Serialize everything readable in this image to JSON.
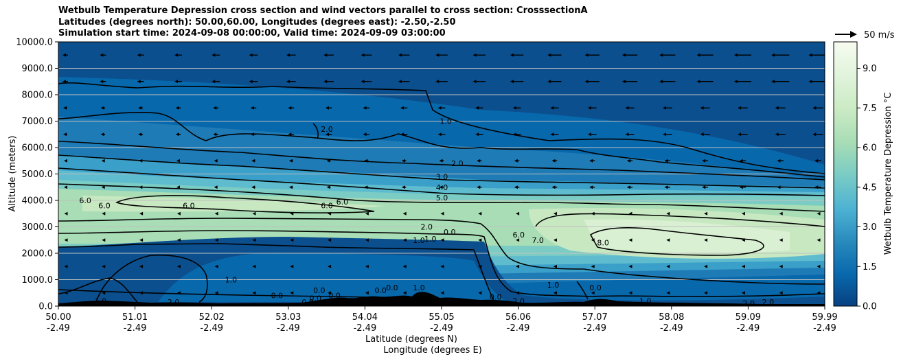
{
  "chart_data": {
    "type": "heatmap",
    "title_lines": [
      "Wetbulb Temperature Depression cross section and wind vectors parallel to cross section: CrosssectionA",
      "Latitudes (degrees north): 50.00,60.00, Longitudes (degrees east): -2.50,-2.50",
      "Simulation start time: 2024-09-08 00:00:00, Valid time: 2024-09-09 03:00:00"
    ],
    "ylabel": "Altitude (meters)",
    "xlabel_lat": "Latitude (degrees N)",
    "xlabel_lon": "Longitude (degrees E)",
    "ylim": [
      0,
      10000
    ],
    "yticks": [
      "0.0",
      "1000.0",
      "2000.0",
      "3000.0",
      "4000.0",
      "5000.0",
      "6000.0",
      "7000.0",
      "8000.0",
      "9000.0",
      "10000.0"
    ],
    "xlim": [
      50.0,
      59.99
    ],
    "xticks_lat": [
      "50.00",
      "51.01",
      "52.02",
      "53.03",
      "54.04",
      "55.05",
      "56.06",
      "57.07",
      "58.08",
      "59.09",
      "59.99"
    ],
    "xticks_lon": [
      "-2.49",
      "-2.49",
      "-2.49",
      "-2.49",
      "-2.49",
      "-2.49",
      "-2.49",
      "-2.49",
      "-2.49",
      "-2.49",
      "-2.49"
    ],
    "grid": "horizontal",
    "colorbar": {
      "label": "Wetbulb Temperature Depression °C",
      "range": [
        0,
        10
      ],
      "ticks": [
        "0.0",
        "1.5",
        "3.0",
        "4.5",
        "6.0",
        "7.5",
        "9.0"
      ],
      "colormap": "GnBu",
      "colors": [
        "#084081",
        "#0868ac",
        "#2b8cbe",
        "#4eb3d3",
        "#7bccc4",
        "#a8ddb5",
        "#ccebc5",
        "#e0f3db",
        "#f7fcf0"
      ]
    },
    "contour_labels": [
      {
        "lat": 55.05,
        "alt": 7000,
        "value": "1.0"
      },
      {
        "lat": 53.5,
        "alt": 6700,
        "value": "2.0"
      },
      {
        "lat": 55.2,
        "alt": 5400,
        "value": "2.0"
      },
      {
        "lat": 55.0,
        "alt": 4900,
        "value": "3.0"
      },
      {
        "lat": 55.0,
        "alt": 4500,
        "value": "4.0"
      },
      {
        "lat": 55.0,
        "alt": 4100,
        "value": "5.0"
      },
      {
        "lat": 50.35,
        "alt": 4000,
        "value": "6.0"
      },
      {
        "lat": 50.6,
        "alt": 3800,
        "value": "6.0"
      },
      {
        "lat": 51.7,
        "alt": 3800,
        "value": "6.0"
      },
      {
        "lat": 53.5,
        "alt": 3800,
        "value": "6.0"
      },
      {
        "lat": 53.7,
        "alt": 3950,
        "value": "6.0"
      },
      {
        "lat": 54.8,
        "alt": 3000,
        "value": "2.0"
      },
      {
        "lat": 55.1,
        "alt": 2800,
        "value": "0.0"
      },
      {
        "lat": 54.7,
        "alt": 2500,
        "value": "1.0"
      },
      {
        "lat": 54.85,
        "alt": 2550,
        "value": "1.0"
      },
      {
        "lat": 56.0,
        "alt": 2700,
        "value": "6.0"
      },
      {
        "lat": 56.25,
        "alt": 2500,
        "value": "7.0"
      },
      {
        "lat": 57.1,
        "alt": 2400,
        "value": "8.0"
      },
      {
        "lat": 52.25,
        "alt": 1000,
        "value": "1.0"
      },
      {
        "lat": 50.55,
        "alt": 200,
        "value": "1.0"
      },
      {
        "lat": 51.5,
        "alt": 150,
        "value": "2.0"
      },
      {
        "lat": 52.85,
        "alt": 400,
        "value": "0.0"
      },
      {
        "lat": 53.4,
        "alt": 600,
        "value": "0.0"
      },
      {
        "lat": 53.25,
        "alt": 150,
        "value": "0.0"
      },
      {
        "lat": 53.35,
        "alt": 300,
        "value": "0.0"
      },
      {
        "lat": 53.6,
        "alt": 400,
        "value": "0.0"
      },
      {
        "lat": 54.2,
        "alt": 600,
        "value": "0.0"
      },
      {
        "lat": 54.35,
        "alt": 700,
        "value": "0.0"
      },
      {
        "lat": 54.7,
        "alt": 700,
        "value": "1.0"
      },
      {
        "lat": 55.7,
        "alt": 350,
        "value": "0.0"
      },
      {
        "lat": 56.0,
        "alt": 200,
        "value": "2.0"
      },
      {
        "lat": 56.45,
        "alt": 800,
        "value": "1.0"
      },
      {
        "lat": 57.0,
        "alt": 700,
        "value": "0.0"
      },
      {
        "lat": 57.65,
        "alt": 200,
        "value": "1.0"
      },
      {
        "lat": 59.0,
        "alt": 100,
        "value": "2.0"
      },
      {
        "lat": 59.25,
        "alt": 150,
        "value": "2.0"
      }
    ],
    "wind_key": {
      "label": "50 m/s",
      "speed": 50
    },
    "wind_direction": "toward lower latitude (south) along section"
  }
}
